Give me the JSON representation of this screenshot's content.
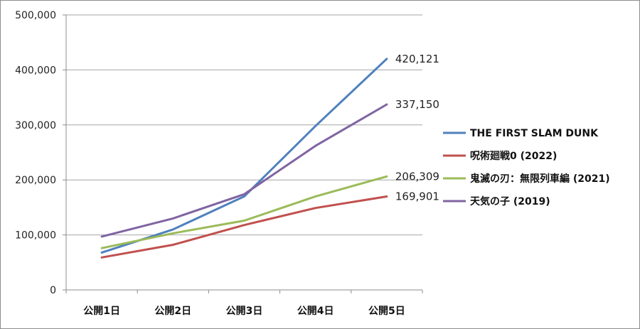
{
  "chart_data": {
    "type": "line",
    "categories": [
      "公開1日",
      "公開2日",
      "公開3日",
      "公開4日",
      "公開5日"
    ],
    "ylim": [
      0,
      500000
    ],
    "yticks": [
      0,
      100000,
      200000,
      300000,
      400000,
      500000
    ],
    "ytick_labels": [
      "0",
      "100,000",
      "200,000",
      "300,000",
      "400,000",
      "500,000"
    ],
    "grid": "horizontal",
    "legend": "right",
    "series": [
      {
        "name": "THE FIRST SLAM DUNK",
        "color": "#4f81bd",
        "values": [
          68000,
          110000,
          170000,
          298000,
          420121
        ],
        "end_label": "420,121"
      },
      {
        "name": "呪術廻戦0 (2022)",
        "color": "#c0504d",
        "values": [
          59000,
          82000,
          118000,
          149000,
          169901
        ],
        "end_label": "169,901"
      },
      {
        "name": "鬼滅の刃：無限列車編 (2021)",
        "color": "#9bbb59",
        "values": [
          76000,
          103000,
          126000,
          170000,
          206309
        ],
        "end_label": "206,309"
      },
      {
        "name": "天気の子 (2019)",
        "color": "#8064a2",
        "values": [
          97000,
          130000,
          174000,
          262000,
          337150
        ],
        "end_label": "337,150"
      }
    ]
  }
}
